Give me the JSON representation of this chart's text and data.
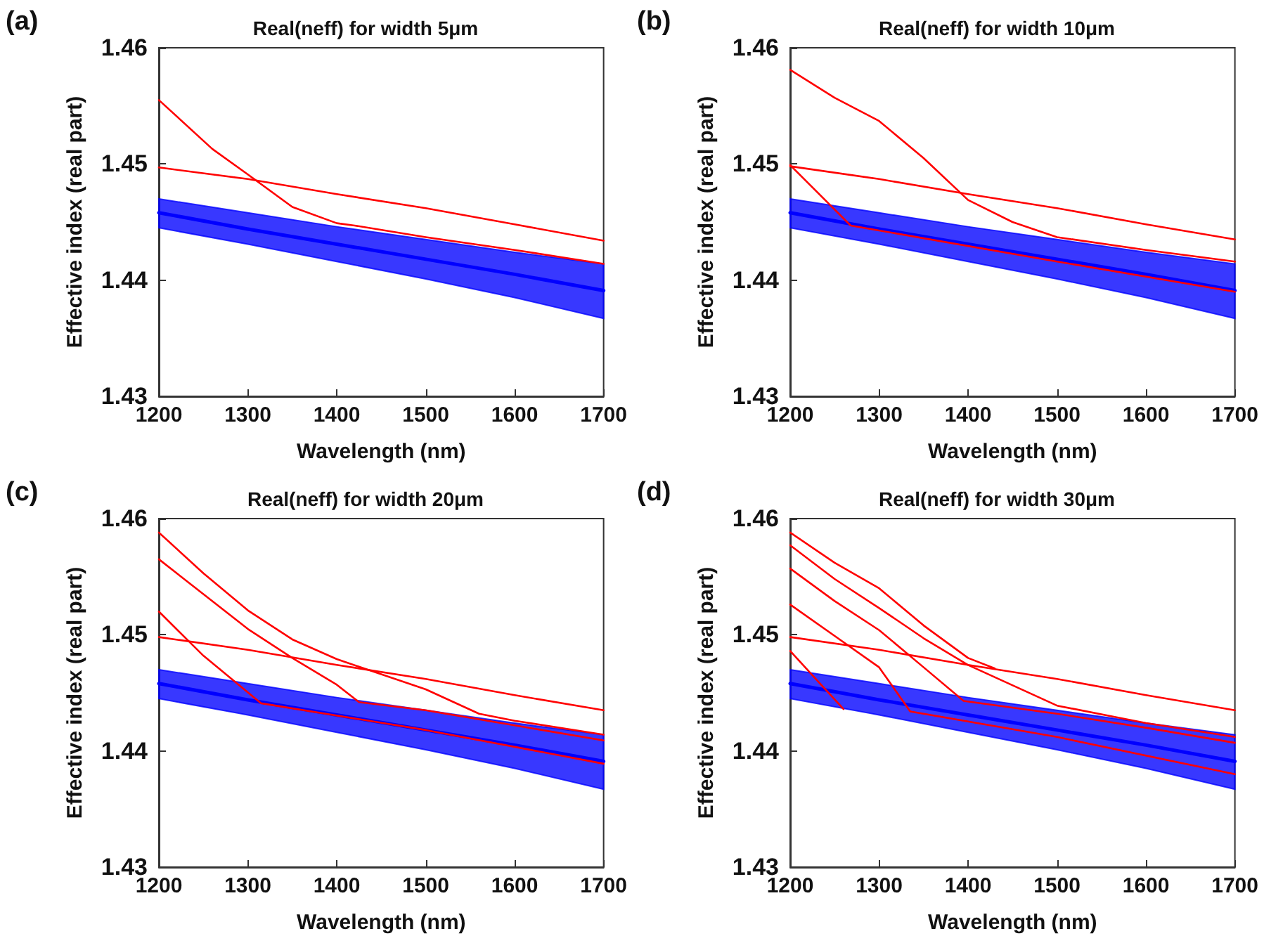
{
  "chart_data": [
    {
      "type": "line",
      "title": "Real(neff) for width 5μm",
      "xlabel": "Wavelength (nm)",
      "ylabel": "Effective index (real part)",
      "annotations": [
        "(a)"
      ],
      "xlim": [
        1200,
        1700
      ],
      "xticks": [
        1200,
        1300,
        1400,
        1500,
        1600,
        1700
      ],
      "ylim": [
        1.43,
        1.46
      ],
      "yticks": [
        1.43,
        1.44,
        1.45,
        1.46
      ],
      "grid": false,
      "marker": "none",
      "line_style": "solid",
      "series": [
        {
          "color": "#0000ff",
          "x": [
            1200,
            1300,
            1400,
            1500,
            1600,
            1700
          ],
          "values": [
            1.4458,
            1.4444,
            1.4431,
            1.4418,
            1.4405,
            1.4391
          ],
          "lower": [
            1.4445,
            1.4431,
            1.4416,
            1.4401,
            1.4385,
            1.4367
          ],
          "upper": [
            1.447,
            1.4458,
            1.4446,
            1.4435,
            1.4424,
            1.4414
          ]
        },
        {
          "color": "#ff0000",
          "x": [
            1200,
            1300,
            1400,
            1500,
            1600,
            1700
          ],
          "values": [
            1.4497,
            1.4487,
            1.4474,
            1.4462,
            1.4448,
            1.4434
          ]
        },
        {
          "color": "#ff0000",
          "x": [
            1200,
            1260,
            1300,
            1350,
            1400,
            1420,
            1500,
            1600,
            1700
          ],
          "values": [
            1.4555,
            1.4513,
            1.4491,
            1.4463,
            1.4449,
            1.4447,
            1.4437,
            1.4426,
            1.4414
          ]
        }
      ]
    },
    {
      "type": "line",
      "title": "Real(neff) for width 10μm",
      "xlabel": "Wavelength (nm)",
      "ylabel": "Effective index (real part)",
      "annotations": [
        "(b)"
      ],
      "xlim": [
        1200,
        1700
      ],
      "xticks": [
        1200,
        1300,
        1400,
        1500,
        1600,
        1700
      ],
      "ylim": [
        1.43,
        1.46
      ],
      "yticks": [
        1.43,
        1.44,
        1.45,
        1.46
      ],
      "grid": false,
      "marker": "none",
      "line_style": "solid",
      "series": [
        {
          "color": "#0000ff",
          "x": [
            1200,
            1300,
            1400,
            1500,
            1600,
            1700
          ],
          "values": [
            1.4458,
            1.4444,
            1.4431,
            1.4418,
            1.4405,
            1.4391
          ],
          "lower": [
            1.4445,
            1.4431,
            1.4416,
            1.4401,
            1.4385,
            1.4367
          ],
          "upper": [
            1.447,
            1.4458,
            1.4446,
            1.4435,
            1.4424,
            1.4414
          ]
        },
        {
          "color": "#ff0000",
          "x": [
            1200,
            1300,
            1400,
            1500,
            1600,
            1700
          ],
          "values": [
            1.4498,
            1.4487,
            1.4474,
            1.4462,
            1.4448,
            1.4435
          ]
        },
        {
          "color": "#ff0000",
          "x": [
            1200,
            1250,
            1300,
            1350,
            1400,
            1450,
            1500,
            1600,
            1700
          ],
          "values": [
            1.4581,
            1.4557,
            1.4537,
            1.4505,
            1.4469,
            1.445,
            1.4437,
            1.4426,
            1.4416
          ]
        },
        {
          "color": "#ff0000",
          "x": [
            1200,
            1268,
            1500,
            1700
          ],
          "values": [
            1.4499,
            1.4447,
            1.4416,
            1.439
          ]
        }
      ]
    },
    {
      "type": "line",
      "title": "Real(neff) for width 20μm",
      "xlabel": "Wavelength (nm)",
      "ylabel": "Effective index (real part)",
      "annotations": [
        "(c)"
      ],
      "xlim": [
        1200,
        1700
      ],
      "xticks": [
        1200,
        1300,
        1400,
        1500,
        1600,
        1700
      ],
      "ylim": [
        1.43,
        1.46
      ],
      "yticks": [
        1.43,
        1.44,
        1.45,
        1.46
      ],
      "grid": false,
      "marker": "none",
      "line_style": "solid",
      "series": [
        {
          "color": "#0000ff",
          "x": [
            1200,
            1300,
            1400,
            1500,
            1600,
            1700
          ],
          "values": [
            1.4458,
            1.4444,
            1.4431,
            1.4418,
            1.4405,
            1.4391
          ],
          "lower": [
            1.4445,
            1.4431,
            1.4416,
            1.4401,
            1.4385,
            1.4367
          ],
          "upper": [
            1.447,
            1.4458,
            1.4446,
            1.4435,
            1.4424,
            1.4414
          ]
        },
        {
          "color": "#ff0000",
          "x": [
            1200,
            1300,
            1400,
            1500,
            1600,
            1700
          ],
          "values": [
            1.4498,
            1.4487,
            1.4474,
            1.4462,
            1.4448,
            1.4435
          ]
        },
        {
          "color": "#ff0000",
          "x": [
            1200,
            1250,
            1300,
            1350,
            1400,
            1500,
            1560,
            1600,
            1700
          ],
          "values": [
            1.4588,
            1.4553,
            1.4521,
            1.4496,
            1.4479,
            1.4453,
            1.4432,
            1.4426,
            1.4414
          ]
        },
        {
          "color": "#ff0000",
          "x": [
            1200,
            1300,
            1350,
            1400,
            1425,
            1500,
            1600,
            1700
          ],
          "values": [
            1.4565,
            1.4505,
            1.448,
            1.4457,
            1.4442,
            1.4435,
            1.4422,
            1.4409
          ]
        },
        {
          "color": "#ff0000",
          "x": [
            1200,
            1250,
            1315,
            1500,
            1700
          ],
          "values": [
            1.452,
            1.4482,
            1.4441,
            1.4418,
            1.4389
          ]
        }
      ]
    },
    {
      "type": "line",
      "title": "Real(neff) for width 30μm",
      "xlabel": "Wavelength (nm)",
      "ylabel": "Effective index (real part)",
      "annotations": [
        "(d)"
      ],
      "xlim": [
        1200,
        1700
      ],
      "xticks": [
        1200,
        1300,
        1400,
        1500,
        1600,
        1700
      ],
      "ylim": [
        1.43,
        1.46
      ],
      "yticks": [
        1.43,
        1.44,
        1.45,
        1.46
      ],
      "grid": false,
      "marker": "none",
      "line_style": "solid",
      "series": [
        {
          "color": "#0000ff",
          "x": [
            1200,
            1300,
            1400,
            1500,
            1600,
            1700
          ],
          "values": [
            1.4458,
            1.4444,
            1.4431,
            1.4418,
            1.4405,
            1.4391
          ],
          "lower": [
            1.4445,
            1.4431,
            1.4416,
            1.4401,
            1.4385,
            1.4367
          ],
          "upper": [
            1.447,
            1.4458,
            1.4446,
            1.4435,
            1.4424,
            1.4414
          ]
        },
        {
          "color": "#ff0000",
          "x": [
            1200,
            1300,
            1400,
            1500,
            1600,
            1700
          ],
          "values": [
            1.4498,
            1.4487,
            1.4474,
            1.4462,
            1.4448,
            1.4435
          ]
        },
        {
          "color": "#ff0000",
          "x": [
            1200,
            1250,
            1300,
            1350,
            1400,
            1430
          ],
          "values": [
            1.4588,
            1.4562,
            1.454,
            1.4508,
            1.448,
            1.4471
          ]
        },
        {
          "color": "#ff0000",
          "x": [
            1200,
            1250,
            1300,
            1350,
            1400,
            1500,
            1600,
            1700
          ],
          "values": [
            1.4577,
            1.4548,
            1.4523,
            1.4497,
            1.4474,
            1.4439,
            1.4424,
            1.4412
          ]
        },
        {
          "color": "#ff0000",
          "x": [
            1200,
            1250,
            1300,
            1350,
            1395,
            1500,
            1600,
            1700
          ],
          "values": [
            1.4557,
            1.4529,
            1.4504,
            1.4472,
            1.4443,
            1.4432,
            1.442,
            1.4407
          ]
        },
        {
          "color": "#ff0000",
          "x": [
            1200,
            1250,
            1300,
            1335,
            1500,
            1700
          ],
          "values": [
            1.4526,
            1.4499,
            1.4472,
            1.4434,
            1.4412,
            1.438
          ]
        },
        {
          "color": "#ff0000",
          "x": [
            1200,
            1230,
            1260
          ],
          "values": [
            1.4486,
            1.4461,
            1.4436
          ]
        }
      ]
    }
  ]
}
